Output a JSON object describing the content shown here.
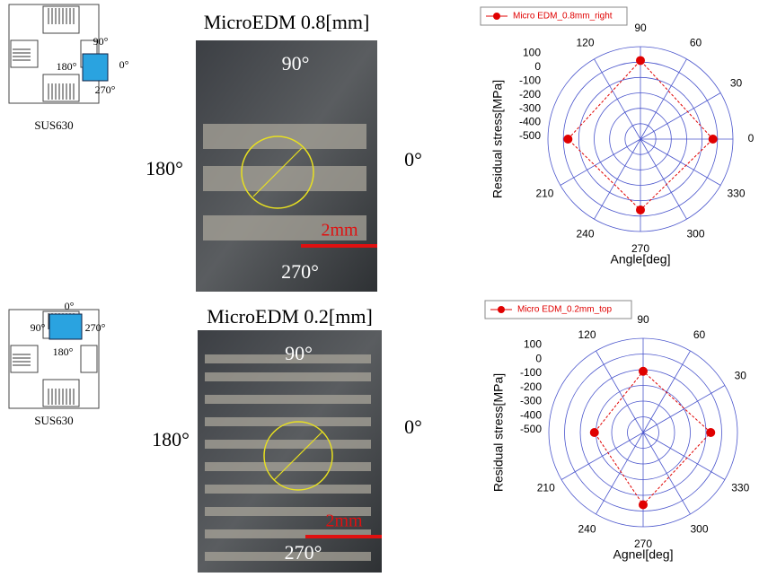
{
  "panels": [
    {
      "schematic": {
        "labels": [
          "90°",
          "180°",
          "0°",
          "270°"
        ],
        "material": "SUS630"
      },
      "micrograph": {
        "title": "MicroEDM 0.8[mm]",
        "top": "90°",
        "bottom": "270°",
        "left": "180°",
        "right": "0°",
        "scale": "2mm"
      }
    },
    {
      "schematic": {
        "labels": [
          "0°",
          "90°",
          "270°",
          "180°"
        ],
        "material": "SUS630"
      },
      "micrograph": {
        "title": "MicroEDM 0.2[mm]",
        "top": "90°",
        "bottom": "270°",
        "left": "180°",
        "right": "0°",
        "scale": "2mm"
      }
    }
  ],
  "chart_data": [
    {
      "type": "polar",
      "y_label": "Residual stress[MPa]",
      "x_label": "Angle[deg]",
      "xticks": [
        0,
        30,
        60,
        90,
        120,
        210,
        240,
        270,
        300,
        330
      ],
      "ylim": [
        -500,
        100
      ],
      "yticks": [
        100,
        0,
        -100,
        -200,
        -300,
        -400,
        -500
      ],
      "x": [
        0,
        90,
        180,
        270
      ],
      "series": [
        {
          "name": "Micro EDM_0.8mm_right",
          "color": "#e00000",
          "values": [
            -30,
            10,
            -30,
            -40
          ]
        }
      ]
    },
    {
      "type": "polar",
      "y_label": "Residual stress[MPa]",
      "x_label": "Agnel[deg]",
      "xticks": [
        30,
        60,
        90,
        120,
        210,
        240,
        270,
        300,
        330
      ],
      "ylim": [
        -500,
        100
      ],
      "yticks": [
        100,
        0,
        -100,
        -200,
        -300,
        -400,
        -500
      ],
      "x": [
        0,
        90,
        180,
        270
      ],
      "series": [
        {
          "name": "Micro EDM_0.2mm_top",
          "color": "#e00000",
          "values": [
            -70,
            -110,
            -190,
            -40
          ]
        }
      ]
    }
  ]
}
